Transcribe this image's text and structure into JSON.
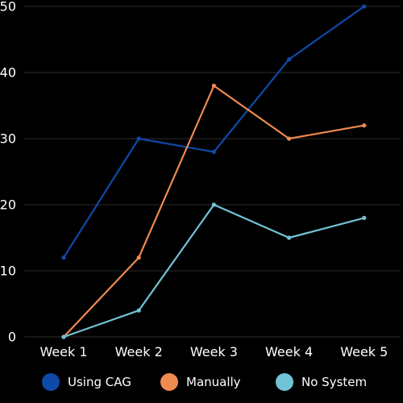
{
  "chart_data": {
    "type": "line",
    "categories": [
      "Week 1",
      "Week 2",
      "Week 3",
      "Week 4",
      "Week 5"
    ],
    "series": [
      {
        "name": "Using CAG",
        "color": "#0f4aa8",
        "values": [
          12,
          30,
          28,
          42,
          50
        ]
      },
      {
        "name": "Manually",
        "color": "#f08a50",
        "values": [
          0,
          12,
          38,
          30,
          32
        ]
      },
      {
        "name": "No System",
        "color": "#73c3d6",
        "values": [
          0,
          4,
          20,
          15,
          18
        ]
      }
    ],
    "ylim": [
      0,
      50
    ],
    "yticks": [
      0,
      10,
      20,
      30,
      40,
      50
    ],
    "grid": true,
    "legend": "bottom",
    "background": "#000000",
    "grid_color": "#2e2e2e"
  }
}
